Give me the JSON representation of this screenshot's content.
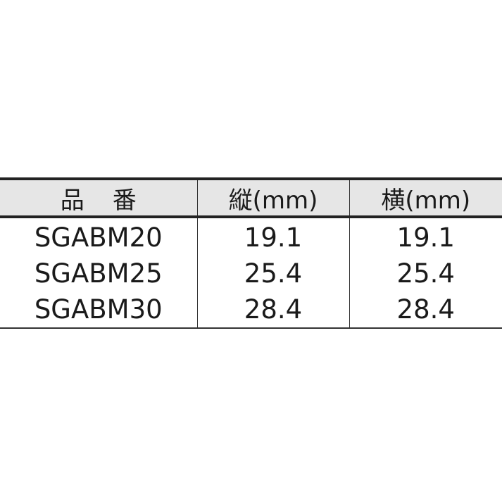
{
  "table": {
    "headers": [
      "品番",
      "縦(mm)",
      "横(mm)"
    ],
    "rows": [
      [
        "SGABM20",
        "19.1",
        "19.1"
      ],
      [
        "SGABM25",
        "25.4",
        "25.4"
      ],
      [
        "SGABM30",
        "28.4",
        "28.4"
      ]
    ]
  }
}
